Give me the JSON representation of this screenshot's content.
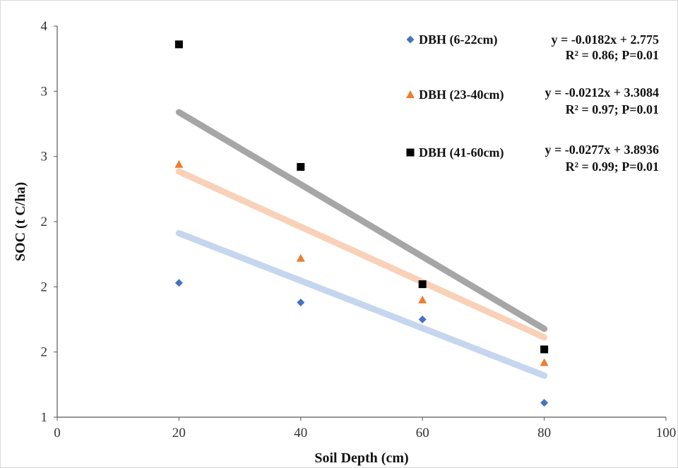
{
  "chart_data": {
    "type": "scatter",
    "xlabel": "Soil Depth (cm)",
    "ylabel": "SOC (t C/ha)",
    "xlim": [
      0,
      100
    ],
    "ylim": [
      1,
      4
    ],
    "x_ticks": [
      0,
      20,
      40,
      60,
      80,
      100
    ],
    "x_tick_labels": [
      "0",
      "20",
      "40",
      "60",
      "80",
      "100"
    ],
    "y_ticks": [
      1,
      1.5,
      2,
      2.5,
      3,
      3.5,
      4
    ],
    "y_tick_labels": [
      "1",
      "2",
      "2",
      "2",
      "3",
      "3",
      "4"
    ],
    "grid": false,
    "legend_position": "top-right",
    "series": [
      {
        "name": "DBH (6-22cm)",
        "marker": "diamond",
        "color": "#4472C4",
        "trend_color": "#C5D6EE",
        "x": [
          20,
          40,
          60,
          80
        ],
        "y": [
          2.03,
          1.88,
          1.75,
          1.11
        ],
        "trendline": {
          "slope": -0.0182,
          "intercept": 2.775
        },
        "equation": "y = -0.0182x + 2.775",
        "stats": "R² = 0.86; P=0.01"
      },
      {
        "name": "DBH (23-40cm)",
        "marker": "triangle",
        "color": "#ED7D31",
        "trend_color": "#F8D1B8",
        "x": [
          20,
          40,
          60,
          80
        ],
        "y": [
          2.94,
          2.22,
          1.9,
          1.42
        ],
        "trendline": {
          "slope": -0.0212,
          "intercept": 3.3084
        },
        "equation": "y = -0.0212x + 3.3084",
        "stats": "R² = 0.97; P=0.01"
      },
      {
        "name": "DBH (41-60cm)",
        "marker": "square",
        "color": "#000000",
        "trend_color": "#A6A6A6",
        "x": [
          20,
          40,
          60,
          80
        ],
        "y": [
          3.86,
          2.92,
          2.02,
          1.52
        ],
        "trendline": {
          "slope": -0.0277,
          "intercept": 3.8936
        },
        "equation": "y = -0.0277x + 3.8936",
        "stats": "R² = 0.99; P=0.01"
      }
    ]
  }
}
